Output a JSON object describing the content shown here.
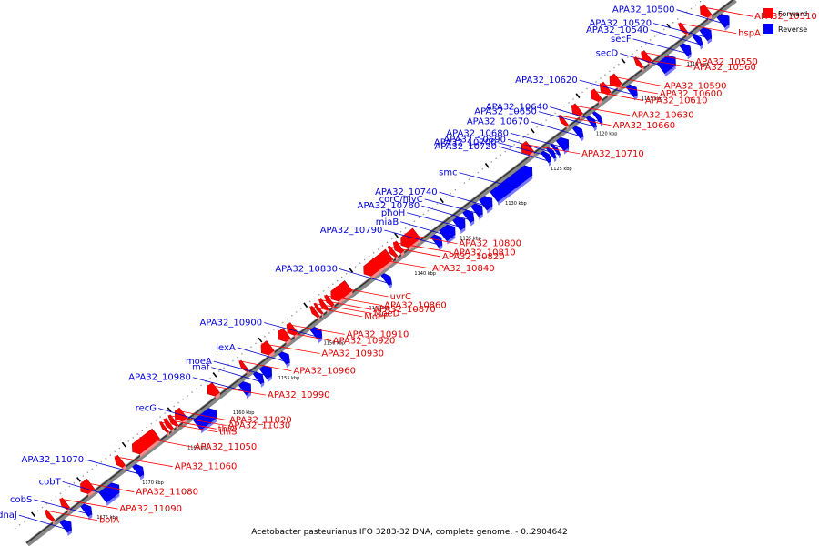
{
  "caption": "Acetobacter pasteurianus IFO 3283-32 DNA, complete genome. - 0..2904642",
  "legend": [
    {
      "label": "Forward",
      "color": "#ff0000"
    },
    {
      "label": "Reverse",
      "color": "#0000ff"
    }
  ],
  "colors": {
    "forward_fill": "#ff0000",
    "forward_line": "#ff0000",
    "reverse_fill": "#0000ff",
    "reverse_line": "#0000cc",
    "backbone": "#888888",
    "tick": "#000000"
  },
  "kbp_ticks": [
    {
      "label": "1110 kbp",
      "kb": 1110
    },
    {
      "label": "1115 kbp",
      "kb": 1115
    },
    {
      "label": "1120 kbp",
      "kb": 1120
    },
    {
      "label": "1125 kbp",
      "kb": 1125
    },
    {
      "label": "1130 kbp",
      "kb": 1130
    },
    {
      "label": "1135 kbp",
      "kb": 1135
    },
    {
      "label": "1140 kbp",
      "kb": 1140
    },
    {
      "label": "1145 kbp",
      "kb": 1145
    },
    {
      "label": "1150 kbp",
      "kb": 1150
    },
    {
      "label": "1155 kbp",
      "kb": 1155
    },
    {
      "label": "1160 kbp",
      "kb": 1160
    },
    {
      "label": "1165 kbp",
      "kb": 1165
    },
    {
      "label": "1170 kbp",
      "kb": 1170
    },
    {
      "label": "1175 kbp",
      "kb": 1175
    },
    {
      "label": "1180 kbp",
      "kb": 1180
    }
  ],
  "genes": [
    {
      "label": "APA32_10500",
      "strand": "reverse",
      "start_kb": 1105.3,
      "end_kb": 1106.2
    },
    {
      "label": "APA32_10510",
      "strand": "forward",
      "start_kb": 1106.4,
      "end_kb": 1107.2
    },
    {
      "label": "APA32_10520",
      "strand": "reverse",
      "start_kb": 1107.3,
      "end_kb": 1108.1
    },
    {
      "label": "APA32_10540",
      "strand": "reverse",
      "start_kb": 1108.4,
      "end_kb": 1108.9
    },
    {
      "label": "hspA",
      "strand": "forward",
      "start_kb": 1109.0,
      "end_kb": 1109.4
    },
    {
      "label": "secF",
      "strand": "reverse",
      "start_kb": 1109.6,
      "end_kb": 1110.3
    },
    {
      "label": "secD",
      "strand": "reverse",
      "start_kb": 1111.2,
      "end_kb": 1112.8
    },
    {
      "label": "APA32_10550",
      "strand": "forward",
      "start_kb": 1113.0,
      "end_kb": 1113.6
    },
    {
      "label": "APA32_10560",
      "strand": "forward",
      "start_kb": 1113.9,
      "end_kb": 1114.3
    },
    {
      "label": "APA32_10620",
      "strand": "reverse",
      "start_kb": 1115.5,
      "end_kb": 1116.2
    },
    {
      "label": "APA32_10590",
      "strand": "forward",
      "start_kb": 1116.3,
      "end_kb": 1117.2
    },
    {
      "label": "APA32_10600",
      "strand": "forward",
      "start_kb": 1117.5,
      "end_kb": 1118.2
    },
    {
      "label": "APA32_10610",
      "strand": "forward",
      "start_kb": 1118.5,
      "end_kb": 1119.2
    },
    {
      "label": "APA32_10640",
      "strand": "reverse",
      "start_kb": 1119.5,
      "end_kb": 1119.9
    },
    {
      "label": "APA32_10650",
      "strand": "reverse",
      "start_kb": 1120.1,
      "end_kb": 1120.6
    },
    {
      "label": "APA32_10630",
      "strand": "forward",
      "start_kb": 1120.6,
      "end_kb": 1121.3
    },
    {
      "label": "APA32_10670",
      "strand": "reverse",
      "start_kb": 1121.5,
      "end_kb": 1122.1
    },
    {
      "label": "APA32_10660",
      "strand": "forward",
      "start_kb": 1122.2,
      "end_kb": 1122.6
    },
    {
      "label": "APA32_10680",
      "strand": "reverse",
      "start_kb": 1123.0,
      "end_kb": 1123.9
    },
    {
      "label": "APA32_10690",
      "strand": "reverse",
      "start_kb": 1124.2,
      "end_kb": 1124.5
    },
    {
      "label": "APA32_10700",
      "strand": "reverse",
      "start_kb": 1124.6,
      "end_kb": 1125.0
    },
    {
      "label": "APA32_10720",
      "strand": "reverse",
      "start_kb": 1125.1,
      "end_kb": 1125.6
    },
    {
      "label": "APA32_10710",
      "strand": "forward",
      "start_kb": 1126.0,
      "end_kb": 1126.9
    },
    {
      "label": "smc",
      "strand": "reverse",
      "start_kb": 1127.0,
      "end_kb": 1131.2
    },
    {
      "label": "APA32_10740",
      "strand": "reverse",
      "start_kb": 1131.4,
      "end_kb": 1132.4
    },
    {
      "label": "corC/hlyC",
      "strand": "reverse",
      "start_kb": 1132.5,
      "end_kb": 1133.3
    },
    {
      "label": "APA32_10760",
      "strand": "reverse",
      "start_kb": 1133.5,
      "end_kb": 1134.2
    },
    {
      "label": "phoH",
      "strand": "reverse",
      "start_kb": 1134.4,
      "end_kb": 1135.3
    },
    {
      "label": "miaB",
      "strand": "reverse",
      "start_kb": 1135.5,
      "end_kb": 1136.8
    },
    {
      "label": "APA32_10790",
      "strand": "reverse",
      "start_kb": 1137.0,
      "end_kb": 1137.7
    },
    {
      "label": "APA32_10800",
      "strand": "forward",
      "start_kb": 1138.5,
      "end_kb": 1140.2
    },
    {
      "label": "APA32_10810",
      "strand": "forward",
      "start_kb": 1140.3,
      "end_kb": 1140.9
    },
    {
      "label": "APA32_10820",
      "strand": "forward",
      "start_kb": 1141.0,
      "end_kb": 1141.4
    },
    {
      "label": "APA32_10840",
      "strand": "forward",
      "start_kb": 1141.5,
      "end_kb": 1144.3
    },
    {
      "label": "APA32_10830",
      "strand": "reverse",
      "start_kb": 1142.6,
      "end_kb": 1143.2
    },
    {
      "label": "uvrC",
      "strand": "forward",
      "start_kb": 1146.0,
      "end_kb": 1147.9
    },
    {
      "label": "APA32_10860",
      "strand": "forward",
      "start_kb": 1148.0,
      "end_kb": 1148.4
    },
    {
      "label": "APA32_10870",
      "strand": "forward",
      "start_kb": 1148.6,
      "end_kb": 1149.0
    },
    {
      "label": "MoeD",
      "strand": "forward",
      "start_kb": 1149.2,
      "end_kb": 1149.5
    },
    {
      "label": "MoeE",
      "strand": "forward",
      "start_kb": 1149.6,
      "end_kb": 1150.0
    },
    {
      "label": "APA32_10900",
      "strand": "reverse",
      "start_kb": 1150.2,
      "end_kb": 1151.0
    },
    {
      "label": "APA32_10910",
      "strand": "forward",
      "start_kb": 1152.0,
      "end_kb": 1152.7
    },
    {
      "label": "APA32_10920",
      "strand": "forward",
      "start_kb": 1152.8,
      "end_kb": 1153.7
    },
    {
      "label": "lexA",
      "strand": "reverse",
      "start_kb": 1153.8,
      "end_kb": 1154.5
    },
    {
      "label": "APA32_10930",
      "strand": "forward",
      "start_kb": 1154.6,
      "end_kb": 1155.6
    },
    {
      "label": "moeA",
      "strand": "reverse",
      "start_kb": 1155.7,
      "end_kb": 1156.6
    },
    {
      "label": "maf",
      "strand": "reverse",
      "start_kb": 1156.7,
      "end_kb": 1157.3
    },
    {
      "label": "APA32_10960",
      "strand": "forward",
      "start_kb": 1157.4,
      "end_kb": 1157.8
    },
    {
      "label": "APA32_10980",
      "strand": "reverse",
      "start_kb": 1158.0,
      "end_kb": 1158.9
    },
    {
      "label": "APA32_10990",
      "strand": "forward",
      "start_kb": 1160.6,
      "end_kb": 1161.5
    },
    {
      "label": "recG",
      "strand": "reverse",
      "start_kb": 1161.8,
      "end_kb": 1163.9
    },
    {
      "label": "APA32_11020",
      "strand": "forward",
      "start_kb": 1164.2,
      "end_kb": 1165.1
    },
    {
      "label": "APA32_11030",
      "strand": "forward",
      "start_kb": 1165.2,
      "end_kb": 1165.6
    },
    {
      "label": "thiO",
      "strand": "forward",
      "start_kb": 1165.7,
      "end_kb": 1166.1
    },
    {
      "label": "thiS",
      "strand": "forward",
      "start_kb": 1166.2,
      "end_kb": 1166.5
    },
    {
      "label": "APA32_11050",
      "strand": "forward",
      "start_kb": 1167.2,
      "end_kb": 1169.8
    },
    {
      "label": "APA32_11070",
      "strand": "reverse",
      "start_kb": 1169.9,
      "end_kb": 1170.6
    },
    {
      "label": "APA32_11060",
      "strand": "forward",
      "start_kb": 1171.0,
      "end_kb": 1171.6
    },
    {
      "label": "cobT",
      "strand": "reverse",
      "start_kb": 1172.5,
      "end_kb": 1174.3
    },
    {
      "label": "APA32_11080",
      "strand": "forward",
      "start_kb": 1174.4,
      "end_kb": 1175.5
    },
    {
      "label": "cobS",
      "strand": "reverse",
      "start_kb": 1175.6,
      "end_kb": 1176.3
    },
    {
      "label": "APA32_11090",
      "strand": "forward",
      "start_kb": 1177.1,
      "end_kb": 1177.6
    },
    {
      "label": "dnaJ",
      "strand": "reverse",
      "start_kb": 1177.8,
      "end_kb": 1178.6
    },
    {
      "label": "bolA",
      "strand": "forward",
      "start_kb": 1178.8,
      "end_kb": 1179.2
    }
  ]
}
